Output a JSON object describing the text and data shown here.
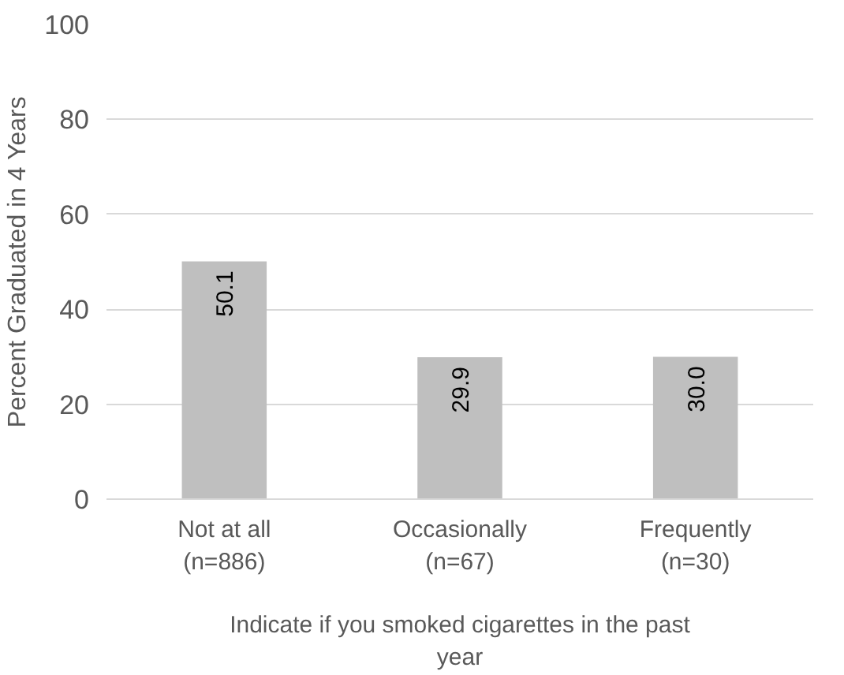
{
  "chart_data": {
    "type": "bar",
    "categories": [
      "Not at all\n(n=886)",
      "Occasionally\n(n=67)",
      "Frequently\n(n=30)"
    ],
    "values": [
      50.1,
      29.9,
      30.0
    ],
    "color": "#bfbfbf",
    "ylabel": "Percent Graduated in 4 Years",
    "xlabel": "Indicate if you smoked cigarettes in the past year",
    "ylim": [
      0,
      100
    ],
    "yticks": [
      0,
      20,
      40,
      60,
      80,
      100
    ],
    "grid": "y",
    "value_labels": [
      "50.1",
      "29.9",
      "30.0"
    ]
  }
}
